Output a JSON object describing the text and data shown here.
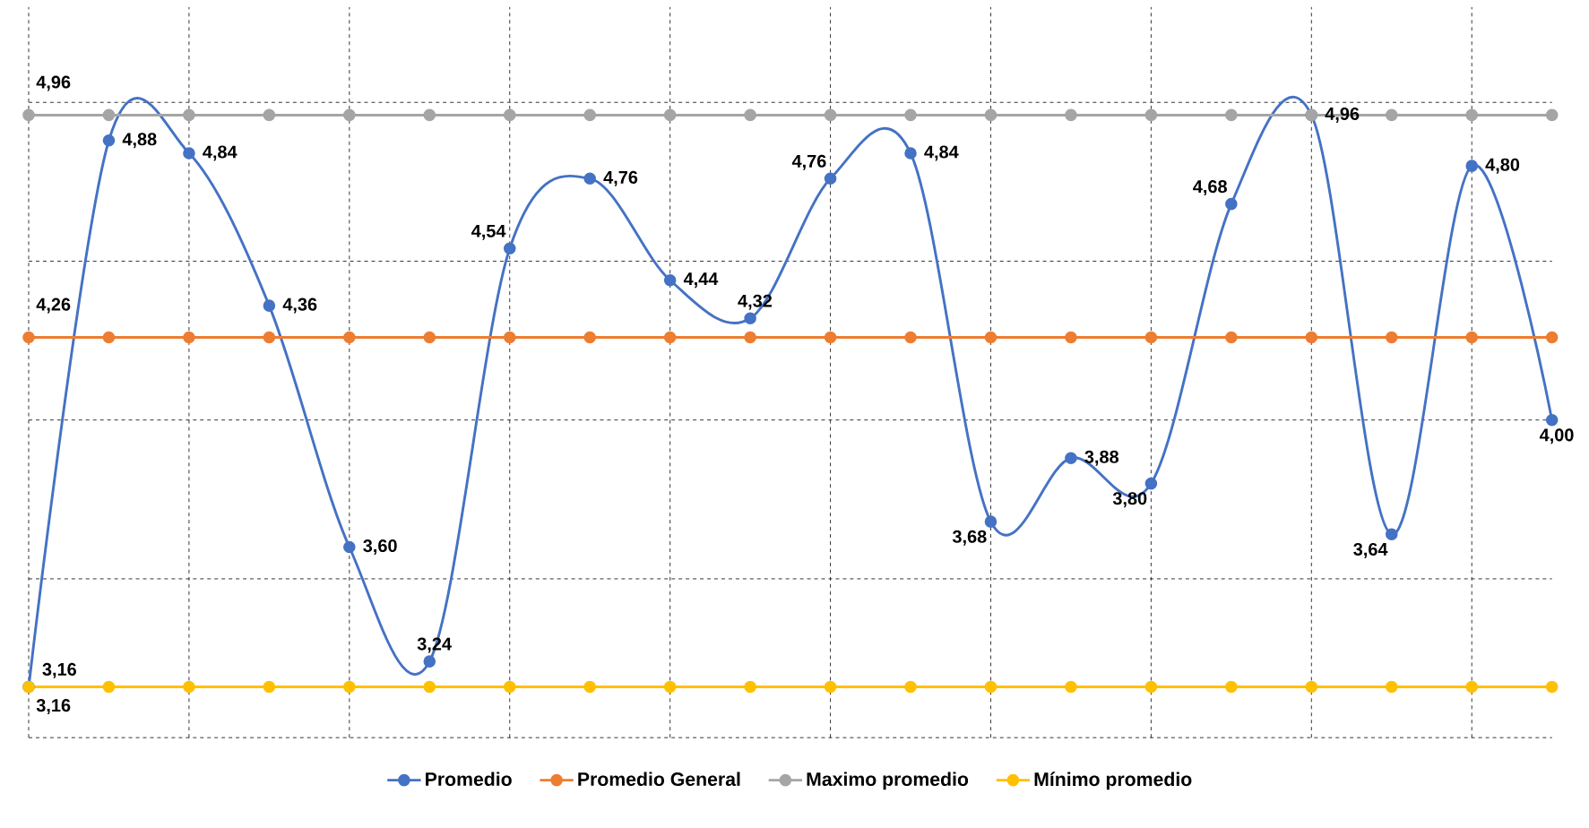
{
  "chart_data": {
    "type": "line",
    "categories": [
      null,
      null,
      null,
      null,
      null,
      null,
      null,
      null,
      null,
      null,
      null,
      null,
      null,
      null,
      null,
      null,
      null,
      null,
      null,
      null
    ],
    "ylim": [
      3,
      5.3
    ],
    "yticks": [
      {
        "value": 3,
        "label": null
      },
      {
        "value": 3.5,
        "label": null
      },
      {
        "value": 4,
        "label": null
      },
      {
        "value": 4.5,
        "label": null
      },
      {
        "value": 5,
        "label": null
      }
    ],
    "grid": true,
    "legend": "bottom",
    "marker": "circle",
    "line_style": "solid",
    "series": [
      {
        "name": "Promedio",
        "color": "#4472c4",
        "values": [
          3.16,
          4.88,
          4.84,
          4.36,
          3.6,
          3.24,
          4.54,
          4.76,
          4.44,
          4.32,
          4.76,
          4.84,
          3.68,
          3.88,
          3.8,
          4.68,
          4.96,
          3.64,
          4.8,
          4.0
        ],
        "value_labels": [
          "3,16",
          "4,88",
          "4,84",
          "4,36",
          "3,60",
          "3,24",
          "4,54",
          "4,76",
          "4,44",
          "4,32",
          "4,76",
          "4,84",
          "3,68",
          "3,88",
          "3,80",
          "4,68",
          "4,96",
          "3,64",
          "4,80",
          "4,00"
        ]
      },
      {
        "name": "Promedio General",
        "color": "#ed7d31",
        "values": [
          4.26,
          4.26,
          4.26,
          4.26,
          4.26,
          4.26,
          4.26,
          4.26,
          4.26,
          4.26,
          4.26,
          4.26,
          4.26,
          4.26,
          4.26,
          4.26,
          4.26,
          4.26,
          4.26,
          4.26
        ],
        "value_labels": [
          "4,26",
          null,
          null,
          null,
          null,
          null,
          null,
          null,
          null,
          null,
          null,
          null,
          null,
          null,
          null,
          null,
          null,
          null,
          null,
          null
        ]
      },
      {
        "name": "Maximo promedio",
        "color": "#a5a5a5",
        "values": [
          4.96,
          4.96,
          4.96,
          4.96,
          4.96,
          4.96,
          4.96,
          4.96,
          4.96,
          4.96,
          4.96,
          4.96,
          4.96,
          4.96,
          4.96,
          4.96,
          4.96,
          4.96,
          4.96,
          4.96
        ],
        "value_labels": [
          "4,96",
          null,
          null,
          null,
          null,
          null,
          null,
          null,
          null,
          null,
          null,
          null,
          null,
          null,
          null,
          null,
          null,
          null,
          null,
          null
        ]
      },
      {
        "name": "Mínimo promedio",
        "color": "#ffc000",
        "values": [
          3.16,
          3.16,
          3.16,
          3.16,
          3.16,
          3.16,
          3.16,
          3.16,
          3.16,
          3.16,
          3.16,
          3.16,
          3.16,
          3.16,
          3.16,
          3.16,
          3.16,
          3.16,
          3.16,
          3.16
        ],
        "value_labels": [
          "3,16",
          null,
          null,
          null,
          null,
          null,
          null,
          null,
          null,
          null,
          null,
          null,
          null,
          null,
          null,
          null,
          null,
          null,
          null,
          null
        ]
      }
    ]
  }
}
